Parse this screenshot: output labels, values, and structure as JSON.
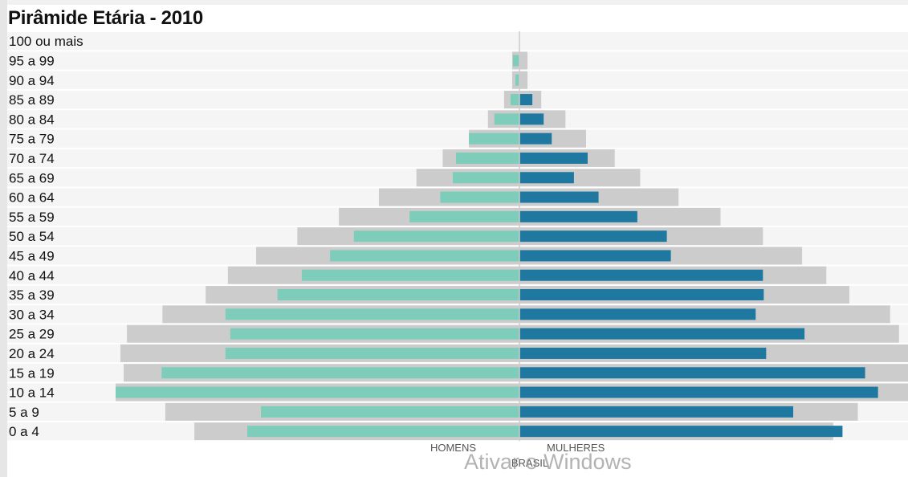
{
  "title": "Pirâmide Etária - 2010",
  "watermark": "Ativar o Windows",
  "colors": {
    "homens": "#7ecdbb",
    "mulheres": "#1f78a0",
    "brasil": "#cccccc",
    "row_band": "#f5f5f5",
    "axis": "#cccccc"
  },
  "chart_data": {
    "type": "bar",
    "orientation": "horizontal-diverging",
    "title": "Pirâmide Etária - 2010",
    "categories": [
      "100 ou mais",
      "95 a 99",
      "90 a 94",
      "85 a 89",
      "80 a 84",
      "75 a 79",
      "70 a 74",
      "65 a 69",
      "60 a 64",
      "55 a 59",
      "50 a 54",
      "45 a 49",
      "40 a 44",
      "35 a 39",
      "30 a 34",
      "25 a 29",
      "20 a 24",
      "15 a 19",
      "10 a 14",
      "5 a 9",
      "0 a 4"
    ],
    "unit_note": "values are relative (widest bar = 100)",
    "series": [
      {
        "name": "HOMENS",
        "side": "left",
        "values": [
          0,
          1.6,
          1.0,
          2.2,
          6.2,
          12.5,
          15.7,
          16.5,
          19.6,
          27.2,
          41.0,
          46.9,
          53.9,
          59.9,
          72.8,
          71.6,
          72.8,
          88.6,
          100,
          64.0,
          67.4
        ]
      },
      {
        "name": "MULHERES",
        "side": "right",
        "values": [
          0,
          0.0,
          0.0,
          3.2,
          6.0,
          8.0,
          16.9,
          13.5,
          19.6,
          29.2,
          36.5,
          37.5,
          60.3,
          60.5,
          58.5,
          70.6,
          61.1,
          85.6,
          88.8,
          67.8,
          80.0
        ]
      },
      {
        "name": "BRASIL",
        "side": "both",
        "role": "background",
        "left": [
          0,
          1.8,
          1.8,
          3.8,
          7.8,
          12.5,
          19.0,
          25.5,
          34.8,
          44.7,
          55.0,
          65.2,
          72.2,
          77.7,
          88.4,
          97.2,
          98.8,
          98.0,
          100,
          87.7,
          80.5
        ],
        "right": [
          0,
          2.0,
          2.0,
          5.4,
          11.4,
          16.5,
          23.6,
          29.9,
          39.4,
          49.8,
          60.3,
          70.0,
          76.0,
          81.7,
          91.8,
          94.0,
          97.8,
          96.8,
          97.0,
          83.8,
          77.7
        ]
      }
    ],
    "legend": {
      "left_label": "HOMENS",
      "right_label": "MULHERES",
      "bottom_label": "BRASIL"
    },
    "grid": false
  }
}
